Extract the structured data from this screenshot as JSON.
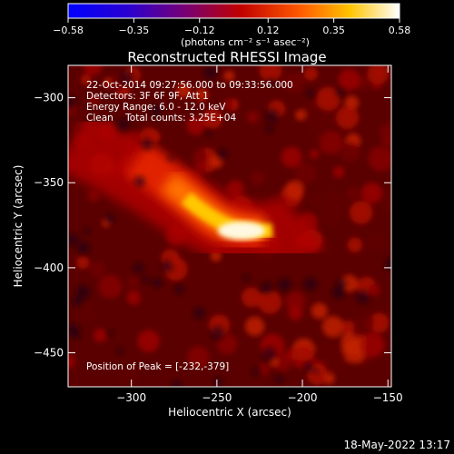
{
  "chart_data": {
    "type": "heatmap",
    "title": "Reconstructed RHESSI Image",
    "xlabel": "Heliocentric X (arcsec)",
    "ylabel": "Heliocentric Y (arcsec)",
    "xlim": [
      -337,
      -148
    ],
    "ylim": [
      -470,
      -281
    ],
    "x_ticks": [
      -300,
      -250,
      -200,
      -150
    ],
    "x_tick_labels": [
      "−300",
      "−250",
      "−200",
      "−150"
    ],
    "y_ticks": [
      -300,
      -350,
      -400,
      -450
    ],
    "y_tick_labels": [
      "−300",
      "−350",
      "−400",
      "−450"
    ],
    "colorbar": {
      "range": [
        -0.58,
        0.58
      ],
      "ticks": [
        -0.58,
        -0.35,
        -0.12,
        0.12,
        0.35,
        0.58
      ],
      "tick_labels": [
        "−0.58",
        "−0.35",
        "−0.12",
        "0.12",
        "0.35",
        "0.58"
      ],
      "unit_label": "(photons cm⁻² s⁻¹ asec⁻²)",
      "colors": [
        "#0000ff",
        "#3f00c8",
        "#800080",
        "#c00000",
        "#ff6000",
        "#ffd200",
        "#ffffff"
      ]
    },
    "annotations": [
      "22-Oct-2014 09:27:56.000 to 09:33:56.000",
      "Detectors: 3F 6F 9F, Att 1",
      "Energy Range: 6.0 - 12.0 keV",
      "Clean    Total counts: 3.25E+04"
    ],
    "peak_label": "Position of Peak = [-232,-379]",
    "peak": [
      -232,
      -379
    ],
    "peak_value": 0.58,
    "source_arc": [
      [
        -300,
        -345
      ],
      [
        -280,
        -360
      ],
      [
        -260,
        -372
      ],
      [
        -232,
        -379
      ],
      [
        -210,
        -374
      ]
    ]
  },
  "footer": {
    "timestamp": "18-May-2022 13:17"
  }
}
